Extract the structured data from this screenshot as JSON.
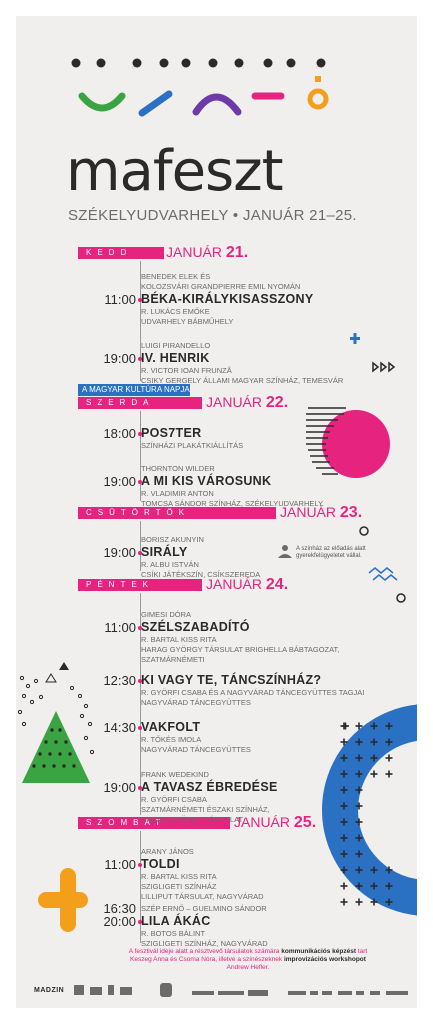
{
  "header": {
    "title": "mafeszt",
    "subtitle": "SZÉKELYUDVARHELY • JANUÁR 21–25."
  },
  "colors": {
    "magenta": "#e6237f",
    "blue": "#2b71c3",
    "green": "#3aa443",
    "orange": "#f49f1b",
    "purple": "#6e3aa7",
    "dark": "#2a2a2a",
    "background": "#f0efee"
  },
  "days": [
    {
      "name": "KEDD",
      "date_prefix": "JANUÁR",
      "date_num": "21."
    },
    {
      "name": "SZERDA",
      "date_prefix": "JANUÁR",
      "date_num": "22."
    },
    {
      "name": "CSÜTÖRTÖK",
      "date_prefix": "JANUÁR",
      "date_num": "23."
    },
    {
      "name": "PÉNTEK",
      "date_prefix": "JANUÁR",
      "date_num": "24."
    },
    {
      "name": "SZOMBAT",
      "date_prefix": "JANUÁR",
      "date_num": "25."
    }
  ],
  "special_tag": "A MAGYAR KULTÚRA NAPJA",
  "events": [
    {
      "time": "11:00",
      "pre": [
        "BENEDEK ELEK ÉS",
        "KOLOZSVÁRI GRANDPIERRE EMIL NYOMÁN"
      ],
      "title": "BÉKA-KIRÁLYKISASSZONY",
      "post": [
        "R. LUKÁCS EMŐKE",
        "UDVARHELY BÁBMŰHELY"
      ]
    },
    {
      "time": "19:00",
      "pre": [
        "LUIGI PIRANDELLO"
      ],
      "title": "IV. HENRIK",
      "post": [
        "R. VICTOR IOAN FRUNZĂ",
        "CSIKY GERGELY ÁLLAMI MAGYAR SZÍNHÁZ, TEMESVÁR"
      ]
    },
    {
      "time": "18:00",
      "pre": [],
      "title": "POS7TER",
      "post": [
        "SZÍNHÁZI PLAKÁTKIÁLLÍTÁS"
      ]
    },
    {
      "time": "19:00",
      "pre": [
        "THORNTON WILDER"
      ],
      "title": "A MI KIS VÁROSUNK",
      "post": [
        "R. VLADIMIR ANTON",
        "TOMCSA SÁNDOR SZÍNHÁZ,  SZÉKELYUDVARHELY"
      ]
    },
    {
      "time": "19:00",
      "pre": [
        "BORISZ AKUNYIN"
      ],
      "title": "SIRÁLY",
      "post": [
        "R. ALBU ISTVÁN",
        "CSÍKI JÁTÉKSZÍN, CSÍKSZEREDA"
      ]
    },
    {
      "time": "11:00",
      "pre": [
        "GIMESI DÓRA"
      ],
      "title": "SZÉLSZABADÍTÓ",
      "post": [
        "R. BARTAL KISS RITA",
        "HARAG GYÖRGY TÁRSULAT BRIGHELLA BÁBTAGOZAT,",
        "SZATMÁRNÉMETI"
      ]
    },
    {
      "time": "12:30",
      "pre": [],
      "title": "KI VAGY TE, TÁNCSZÍNHÁZ?",
      "post": [
        "R. GYÖRFI CSABA ÉS A NAGYVÁRAD TÁNCEGYÜTTES TAGJAI",
        "NAGYVÁRAD TÁNCEGYÜTTES"
      ]
    },
    {
      "time": "14:30",
      "pre": [],
      "title": "VAKFOLT",
      "post": [
        "R. TŐKÉS IMOLA",
        "NAGYVÁRAD TÁNCEGYÜTTES"
      ]
    },
    {
      "time": "19:00",
      "pre": [
        "FRANK WEDEKIND"
      ],
      "title": "A TAVASZ ÉBREDÉSE",
      "post": [
        "R. GYÖRFI CSABA",
        "SZATMÁRNÉMETI ÉSZAKI SZÍNHÁZ,",
        "HARAG GYÖRGY TÁRSULAT"
      ]
    },
    {
      "time": "11:00",
      "pre": [
        "ARANY JÁNOS"
      ],
      "title": "TOLDI",
      "post": [
        "R. BARTAL KISS RITA",
        "SZIGLIGETI SZÍNHÁZ",
        "LILLIPUT TÁRSULAT, NAGYVÁRAD"
      ]
    },
    {
      "time": "20:00",
      "time2": "16:30",
      "pre": [
        "SZÉP ERNŐ – GUELMINO SÁNDOR"
      ],
      "title": "LILA ÁKÁC",
      "post": [
        "R. BOTOS BÁLINT",
        "SZIGLIGETI SZÍNHÁZ, NAGYVÁRAD"
      ]
    }
  ],
  "childcare_note": "A színház az előadás alatt gyerekfelügyeletet vállal.",
  "footnote": {
    "pre": "A fesztivál ideje alatt a résztvevő társulatok számára ",
    "bold1": "kommunikációs képzést",
    "mid": " tart Keszeg Anna és Csoma Nóra, illetve a színészeknek ",
    "bold2": "improvizációs workshopot",
    "post": " Andrew Hefler."
  },
  "footer_logo_text": "MADZIN"
}
